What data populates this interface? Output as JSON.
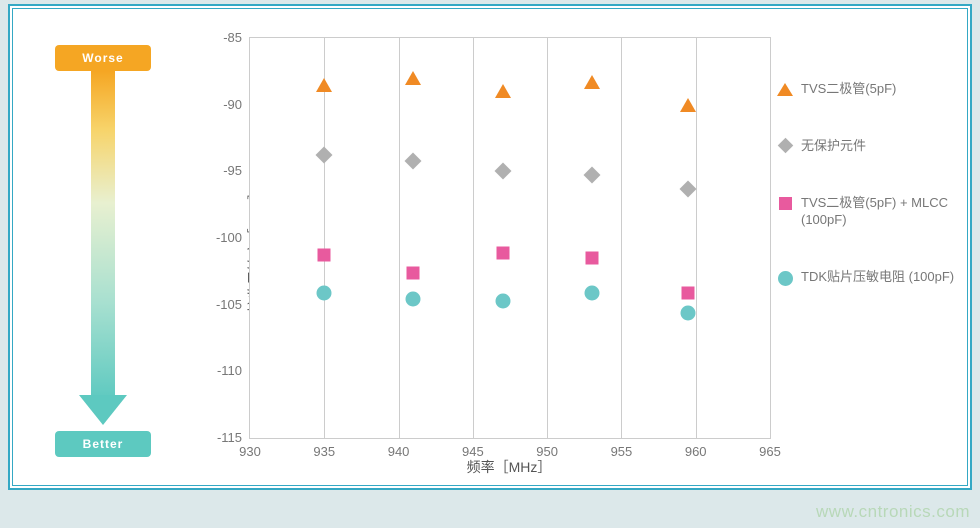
{
  "indicator": {
    "worse_label": "Worse",
    "better_label": "Better",
    "gradient_top": "#f5a623",
    "gradient_bottom": "#5dc9c0"
  },
  "chart": {
    "type": "scatter",
    "background_color": "#ffffff",
    "grid_color": "#cccccc",
    "axis_color": "#cccccc",
    "tick_font_color": "#777777",
    "tick_font_size": 13,
    "title_font_size": 14,
    "x_axis": {
      "label": "频率［MHz］",
      "min": 930,
      "max": 965,
      "ticks": [
        930,
        935,
        940,
        945,
        950,
        955,
        960,
        965
      ]
    },
    "y_axis": {
      "label": "接收灵敏度［dBm］",
      "min": -115,
      "max": -85,
      "ticks": [
        -85,
        -90,
        -95,
        -100,
        -105,
        -110,
        -115
      ]
    },
    "x_values": [
      935,
      941,
      947,
      953,
      959.5
    ],
    "series": [
      {
        "id": "tvs5pf",
        "label": "TVS二极管(5pF)",
        "marker": "triangle",
        "color": "#f08a24",
        "y": [
          -88.5,
          -88.0,
          -89.0,
          -88.3,
          -90.0
        ]
      },
      {
        "id": "noprotect",
        "label": "无保护元件",
        "marker": "diamond",
        "color": "#b0b0b0",
        "y": [
          -93.8,
          -94.2,
          -95.0,
          -95.3,
          -96.3
        ]
      },
      {
        "id": "tvs_mlcc",
        "label": "TVS二极管(5pF) + MLCC (100pF)",
        "marker": "square",
        "color": "#e85a9e",
        "y": [
          -101.3,
          -102.6,
          -101.1,
          -101.5,
          -104.1
        ]
      },
      {
        "id": "tdk",
        "label": "TDK贴片压敏电阻 (100pF)",
        "marker": "circle",
        "color": "#6cc7c7",
        "y": [
          -104.1,
          -104.6,
          -104.7,
          -104.1,
          -105.6
        ]
      }
    ]
  },
  "watermark": "www.cntronics.com",
  "frame": {
    "border_color": "#34a8c4",
    "page_bg": "#dce8ea"
  }
}
